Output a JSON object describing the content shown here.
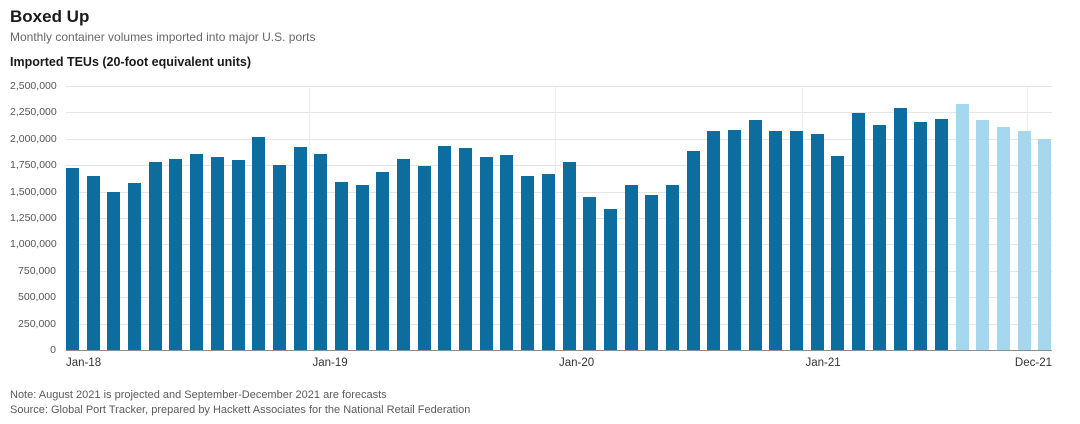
{
  "chart_data": {
    "type": "bar",
    "title": "Boxed Up",
    "subtitle": "Monthly container volumes imported into major U.S. ports",
    "ylabel": "Imported TEUs (20-foot equivalent units)",
    "xlabel": "",
    "ylim": [
      0,
      2500000
    ],
    "grid": "horizontal",
    "legend": "none",
    "categories": [
      "Jan-18",
      "Feb-18",
      "Mar-18",
      "Apr-18",
      "May-18",
      "Jun-18",
      "Jul-18",
      "Aug-18",
      "Sep-18",
      "Oct-18",
      "Nov-18",
      "Dec-18",
      "Jan-19",
      "Feb-19",
      "Mar-19",
      "Apr-19",
      "May-19",
      "Jun-19",
      "Jul-19",
      "Aug-19",
      "Sep-19",
      "Oct-19",
      "Nov-19",
      "Dec-19",
      "Jan-20",
      "Feb-20",
      "Mar-20",
      "Apr-20",
      "May-20",
      "Jun-20",
      "Jul-20",
      "Aug-20",
      "Sep-20",
      "Oct-20",
      "Nov-20",
      "Dec-20",
      "Jan-21",
      "Feb-21",
      "Mar-21",
      "Apr-21",
      "May-21",
      "Jun-21",
      "Jul-21",
      "Aug-21",
      "Sep-21",
      "Oct-21",
      "Nov-21",
      "Dec-21"
    ],
    "values": [
      1720000,
      1650000,
      1500000,
      1580000,
      1780000,
      1810000,
      1860000,
      1830000,
      1800000,
      2020000,
      1750000,
      1920000,
      1860000,
      1590000,
      1560000,
      1690000,
      1810000,
      1740000,
      1930000,
      1910000,
      1830000,
      1850000,
      1650000,
      1670000,
      1780000,
      1450000,
      1340000,
      1560000,
      1470000,
      1560000,
      1880000,
      2070000,
      2080000,
      2180000,
      2070000,
      2070000,
      2050000,
      1840000,
      2240000,
      2130000,
      2290000,
      2160000,
      2190000,
      2330000,
      2180000,
      2110000,
      2070000,
      2000000
    ],
    "forecast_start_index": 43,
    "colors": {
      "actual": "#0c6d9e",
      "forecast": "#a5d8ee"
    },
    "y_ticks": [
      {
        "value": 0,
        "label": "0"
      },
      {
        "value": 250000,
        "label": "250,000"
      },
      {
        "value": 500000,
        "label": "500,000"
      },
      {
        "value": 750000,
        "label": "750,000"
      },
      {
        "value": 1000000,
        "label": "1,000,000"
      },
      {
        "value": 1250000,
        "label": "1,250,000"
      },
      {
        "value": 1500000,
        "label": "1,500,000"
      },
      {
        "value": 1750000,
        "label": "1,750,000"
      },
      {
        "value": 2000000,
        "label": "2,000,000"
      },
      {
        "value": 2250000,
        "label": "2,250,000"
      },
      {
        "value": 2500000,
        "label": "2,500,000"
      }
    ],
    "x_axis_labels": [
      {
        "label": "Jan-18",
        "index": 0,
        "align": "left",
        "gridline": false
      },
      {
        "label": "Jan-19",
        "index": 12,
        "align": "left",
        "gridline": true
      },
      {
        "label": "Jan-20",
        "index": 24,
        "align": "left",
        "gridline": true
      },
      {
        "label": "Jan-21",
        "index": 36,
        "align": "left",
        "gridline": true
      },
      {
        "label": "Dec-21",
        "index": 47,
        "align": "right",
        "gridline": true
      }
    ],
    "note": "Note: August 2021 is projected and September-December 2021 are forecasts",
    "source": "Source: Global Port Tracker, prepared by Hackett Associates for the National Retail Federation"
  }
}
